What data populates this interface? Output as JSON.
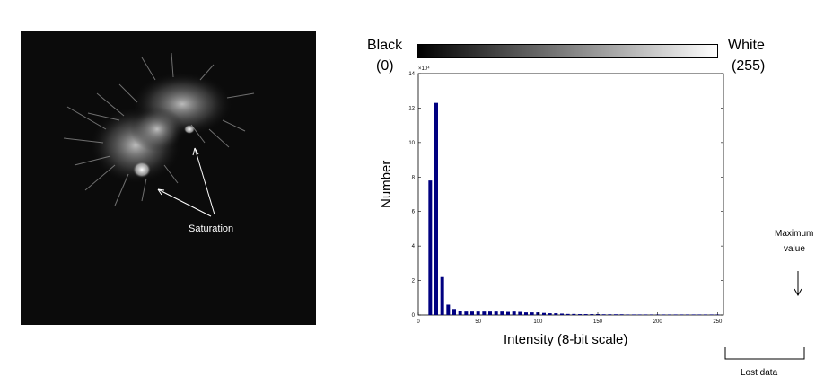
{
  "annotations": {
    "saturation": "Saturation",
    "black_label_line1": "Black",
    "black_label_line2": "(0)",
    "white_label_line1": "White",
    "white_label_line2": "(255)",
    "maximum_value_line1": "Maximum",
    "maximum_value_line2": "value",
    "lost_data": "Lost data"
  },
  "colors": {
    "bars": "#000080",
    "micrograph_bg": "#0b0b0b"
  },
  "chart_data": {
    "type": "bar",
    "xlabel": "Intensity (8-bit scale)",
    "ylabel": "Number",
    "y_multiplier": "×10⁴",
    "xlim": [
      0,
      255
    ],
    "ylim": [
      0,
      14
    ],
    "xticks": [
      0,
      50,
      100,
      150,
      200,
      250
    ],
    "yticks": [
      0,
      2,
      4,
      6,
      8,
      10,
      12,
      14
    ],
    "bar_width": 3,
    "x": [
      10,
      15,
      20,
      25,
      30,
      35,
      40,
      45,
      50,
      55,
      60,
      65,
      70,
      75,
      80,
      85,
      90,
      95,
      100,
      105,
      110,
      115,
      120,
      125,
      130,
      135,
      140,
      145,
      150,
      155,
      160,
      165,
      170,
      175,
      180,
      185,
      190,
      195,
      200,
      205,
      210,
      215,
      220,
      225,
      230,
      235,
      240,
      245,
      250
    ],
    "values": [
      7.8,
      12.3,
      2.2,
      0.6,
      0.35,
      0.25,
      0.2,
      0.2,
      0.2,
      0.2,
      0.2,
      0.2,
      0.2,
      0.18,
      0.2,
      0.18,
      0.15,
      0.15,
      0.15,
      0.12,
      0.1,
      0.1,
      0.08,
      0.06,
      0.06,
      0.05,
      0.05,
      0.05,
      0.05,
      0.04,
      0.04,
      0.04,
      0.04,
      0.03,
      0.03,
      0.03,
      0.03,
      0.03,
      0.03,
      0.03,
      0.03,
      0.03,
      0.03,
      0.03,
      0.03,
      0.03,
      0.03,
      0.03,
      0.03
    ],
    "grid": false
  }
}
